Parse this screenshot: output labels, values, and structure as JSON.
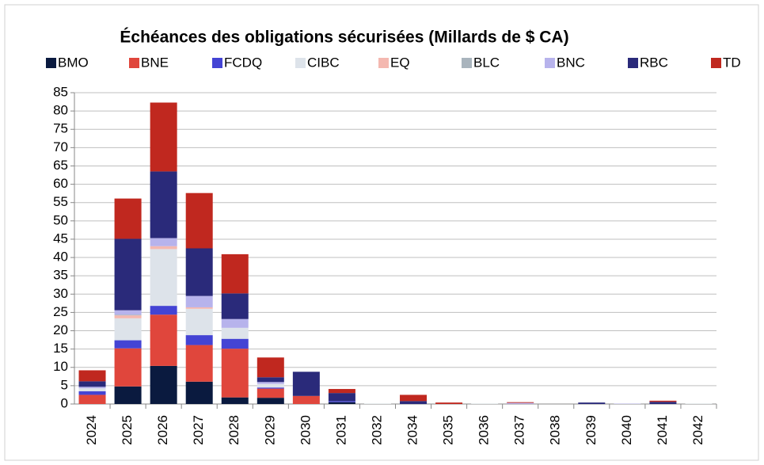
{
  "chart_data": {
    "type": "stacked_bar",
    "title": "Échéances des obligations sécurisées (Millards de $ CA)",
    "categories": [
      "2024",
      "2025",
      "2026",
      "2027",
      "2028",
      "2029",
      "2030",
      "2031",
      "2032",
      "2034",
      "2035",
      "2036",
      "2037",
      "2038",
      "2039",
      "2040",
      "2041",
      "2042"
    ],
    "series": [
      {
        "name": "BMO",
        "color": "#0a1a3f",
        "values": [
          0,
          4.8,
          10.4,
          6.1,
          1.8,
          1.7,
          0,
          0.5,
          0,
          0,
          0,
          0,
          0,
          0,
          0,
          0,
          0,
          0
        ]
      },
      {
        "name": "BNE",
        "color": "#e0463c",
        "values": [
          2.5,
          10.4,
          14,
          10,
          13.3,
          2.5,
          2.2,
          0,
          0,
          0,
          0,
          0,
          0,
          0,
          0,
          0,
          0,
          0
        ]
      },
      {
        "name": "FCDQ",
        "color": "#4444d4",
        "values": [
          1,
          2.2,
          2.4,
          2.7,
          2.7,
          0.3,
          0,
          0.3,
          0,
          0,
          0,
          0,
          0,
          0,
          0,
          0,
          0,
          0
        ]
      },
      {
        "name": "CIBC",
        "color": "#dde3ea",
        "values": [
          0.8,
          6,
          15.5,
          7.2,
          3,
          1,
          0,
          0,
          0.1,
          0,
          0,
          0.1,
          0,
          0,
          0,
          0,
          0,
          0.1
        ]
      },
      {
        "name": "EQ",
        "color": "#f4b8b0",
        "values": [
          0,
          0.8,
          0.8,
          0.4,
          0,
          0,
          0,
          0,
          0,
          0,
          0,
          0,
          0,
          0,
          0,
          0,
          0,
          0
        ]
      },
      {
        "name": "BLC",
        "color": "#a9b4bd",
        "values": [
          0,
          0.2,
          0,
          0,
          0,
          0,
          0,
          0,
          0,
          0,
          0,
          0,
          0,
          0,
          0,
          0,
          0,
          0
        ]
      },
      {
        "name": "BNC",
        "color": "#b7b3ec",
        "values": [
          0.4,
          1.2,
          2.2,
          3.1,
          2.4,
          0.5,
          0,
          0,
          0,
          0,
          0,
          0,
          0.3,
          0,
          0,
          0.1,
          0,
          0
        ]
      },
      {
        "name": "RBC",
        "color": "#2a2a7a",
        "values": [
          1.5,
          19.5,
          18.2,
          13,
          7,
          1.3,
          6.6,
          2.2,
          0,
          0.8,
          0,
          0,
          0,
          0,
          0.4,
          0,
          0.6,
          0
        ]
      },
      {
        "name": "TD",
        "color": "#c0281f",
        "values": [
          3,
          11,
          18.8,
          15.1,
          10.7,
          5.4,
          0,
          1.1,
          0,
          1.7,
          0.4,
          0,
          0.2,
          0,
          0,
          0,
          0.3,
          0
        ]
      }
    ],
    "ylim": [
      0,
      85
    ],
    "yticks": [
      0,
      5,
      10,
      15,
      20,
      25,
      30,
      35,
      40,
      45,
      50,
      55,
      60,
      65,
      70,
      75,
      80,
      85
    ],
    "grid": true
  }
}
